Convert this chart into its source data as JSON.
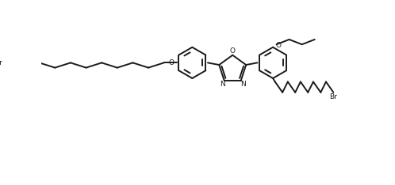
{
  "background_color": "#ffffff",
  "line_color": "#1a1a1a",
  "line_width": 1.4,
  "font_size": 7.5,
  "figsize": [
    4.98,
    2.34
  ],
  "dpi": 100,
  "xlim": [
    0,
    49.8
  ],
  "ylim": [
    0,
    23.4
  ]
}
